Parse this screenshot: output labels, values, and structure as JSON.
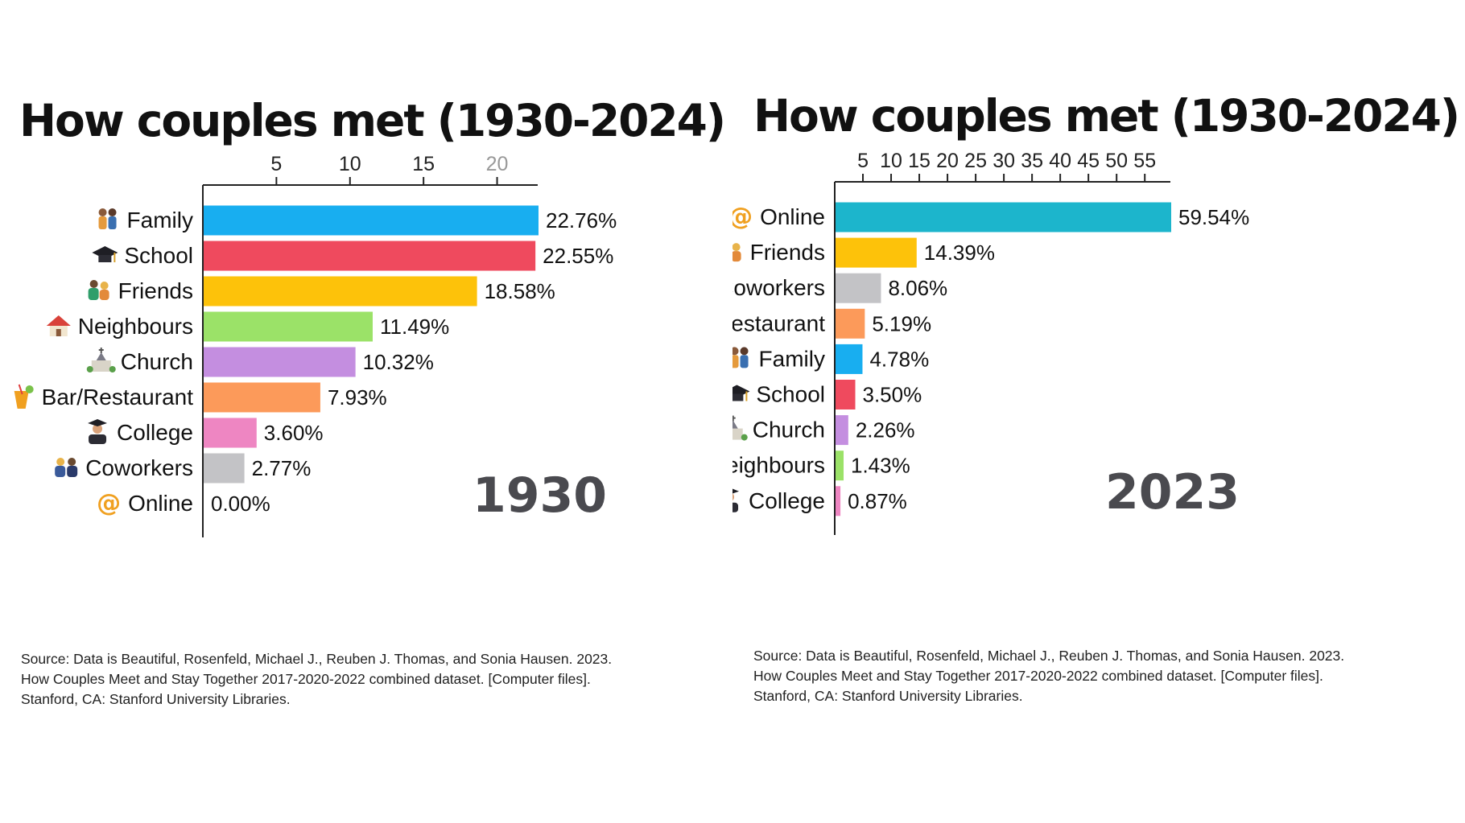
{
  "colors": {
    "Family": "#18aef0",
    "School": "#ef4a5e",
    "Friends": "#fdc20a",
    "Neighbours": "#9be268",
    "Church": "#c48ee0",
    "Bar/Restaurant": "#fc9a5a",
    "College": "#ee86c2",
    "Coworkers": "#c3c3c6",
    "Online": "#1cb5cc"
  },
  "icons": {
    "Family": "family-icon",
    "School": "graduation-cap-icon",
    "Friends": "friends-icon",
    "Neighbours": "house-icon",
    "Church": "church-icon",
    "Bar/Restaurant": "cocktail-icon",
    "College": "graduate-icon",
    "Coworkers": "coworkers-icon",
    "Online": "at-sign-icon"
  },
  "chart_data": [
    {
      "type": "bar",
      "orientation": "horizontal",
      "title": "How couples met (1930-2024)",
      "year_label": "1930",
      "categories": [
        "Family",
        "School",
        "Friends",
        "Neighbours",
        "Church",
        "Bar/Restaurant",
        "College",
        "Coworkers",
        "Online"
      ],
      "values": [
        22.76,
        22.55,
        18.58,
        11.49,
        10.32,
        7.93,
        3.6,
        2.77,
        0.0
      ],
      "value_labels": [
        "22.76%",
        "22.55%",
        "18.58%",
        "11.49%",
        "10.32%",
        "7.93%",
        "3.60%",
        "2.77%",
        "0.00%"
      ],
      "xticks": [
        "5",
        "10",
        "15",
        "20"
      ],
      "xlim": [
        0,
        22.76
      ],
      "axis_position": "top",
      "grid": false,
      "source_lines": [
        "Source: Data is Beautiful, Rosenfeld, Michael J., Reuben J. Thomas, and Sonia Hausen. 2023.",
        "How Couples Meet and Stay Together 2017-2020-2022 combined dataset. [Computer files].",
        "Stanford, CA: Stanford University Libraries."
      ]
    },
    {
      "type": "bar",
      "orientation": "horizontal",
      "title": "How couples met (1930-2024)",
      "year_label": "2023",
      "categories": [
        "Online",
        "Friends",
        "Coworkers",
        "Bar/Restaurant",
        "Family",
        "School",
        "Church",
        "Neighbours",
        "College"
      ],
      "values": [
        59.54,
        14.39,
        8.06,
        5.19,
        4.78,
        3.5,
        2.26,
        1.43,
        0.87
      ],
      "value_labels": [
        "59.54%",
        "14.39%",
        "8.06%",
        "5.19%",
        "4.78%",
        "3.50%",
        "2.26%",
        "1.43%",
        "0.87%"
      ],
      "xticks": [
        "5",
        "10",
        "15",
        "20",
        "25",
        "30",
        "35",
        "40",
        "45",
        "50",
        "55"
      ],
      "xlim": [
        0,
        59.54
      ],
      "axis_position": "top",
      "grid": false,
      "source_lines": [
        "Source: Data is Beautiful, Rosenfeld, Michael J., Reuben J. Thomas, and Sonia Hausen. 2023.",
        "How Couples Meet and Stay Together 2017-2020-2022 combined dataset. [Computer files].",
        "Stanford, CA: Stanford University Libraries."
      ]
    }
  ]
}
